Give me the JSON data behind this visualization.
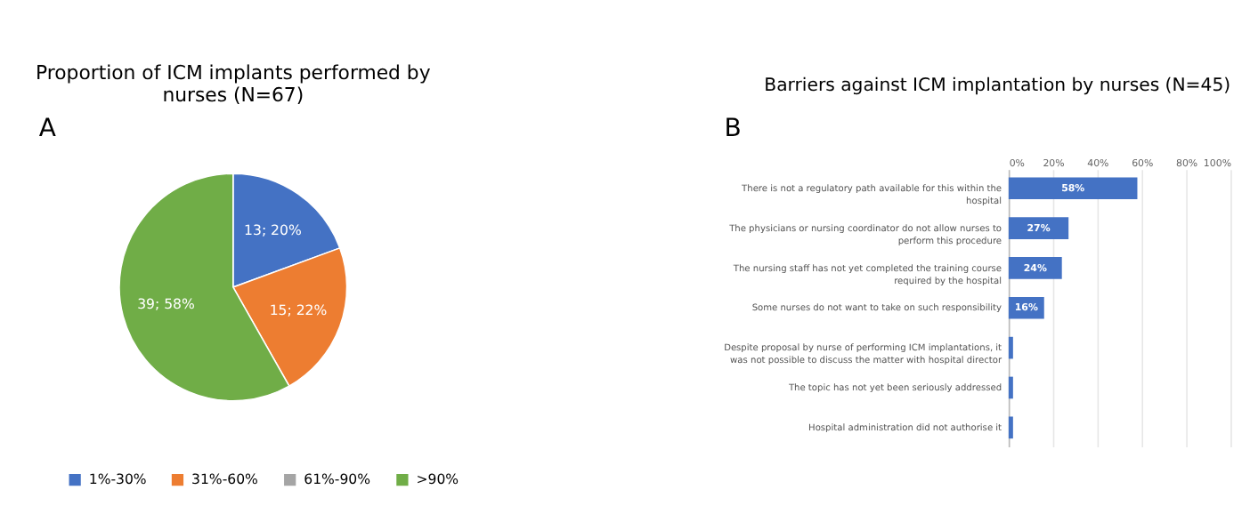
{
  "chart_data": [
    {
      "type": "pie",
      "title": "Proportion of ICM implants performed by nurses (N=67)",
      "annotations": [
        "A"
      ],
      "categories": [
        "1%-30%",
        "31%-60%",
        "61%-90%",
        ">90%"
      ],
      "values": [
        13,
        15,
        0,
        39
      ],
      "value_labels": [
        "13; 20%",
        "15; 22%",
        null,
        "39; 58%"
      ],
      "colors": [
        "#4472c4",
        "#ed7d31",
        "#a5a5a5",
        "#70ad47"
      ],
      "legend": "bottom"
    },
    {
      "type": "bar",
      "orientation": "horizontal",
      "title": "Barriers against ICM implantation by nurses (N=45)",
      "annotations": [
        "B"
      ],
      "categories": [
        "There is not a regulatory path available for this within the hospital",
        "The physicians or nursing coordinator do not allow nurses to perform this procedure",
        "The nursing staff has not yet completed the training course required by the hospital",
        "Some nurses do not want to take on such responsibility",
        "Despite proposal by nurse of performing ICM implantations, it was not possible to discuss the matter with hospital director",
        "The topic has not yet been seriously addressed",
        "Hospital administration did not authorise it"
      ],
      "values": [
        58,
        27,
        24,
        16,
        2,
        2,
        2
      ],
      "value_labels": [
        "58%",
        "27%",
        "24%",
        "16%",
        null,
        null,
        null
      ],
      "color": "#4472c4",
      "xlim": [
        0,
        100
      ],
      "xticks": [
        {
          "value": 0,
          "label": "0%"
        },
        {
          "value": 20,
          "label": "20%"
        },
        {
          "value": 40,
          "label": "40%"
        },
        {
          "value": 60,
          "label": "60%"
        },
        {
          "value": 80,
          "label": "80%"
        },
        {
          "value": 100,
          "label": "100%"
        }
      ],
      "grid": "x"
    }
  ]
}
